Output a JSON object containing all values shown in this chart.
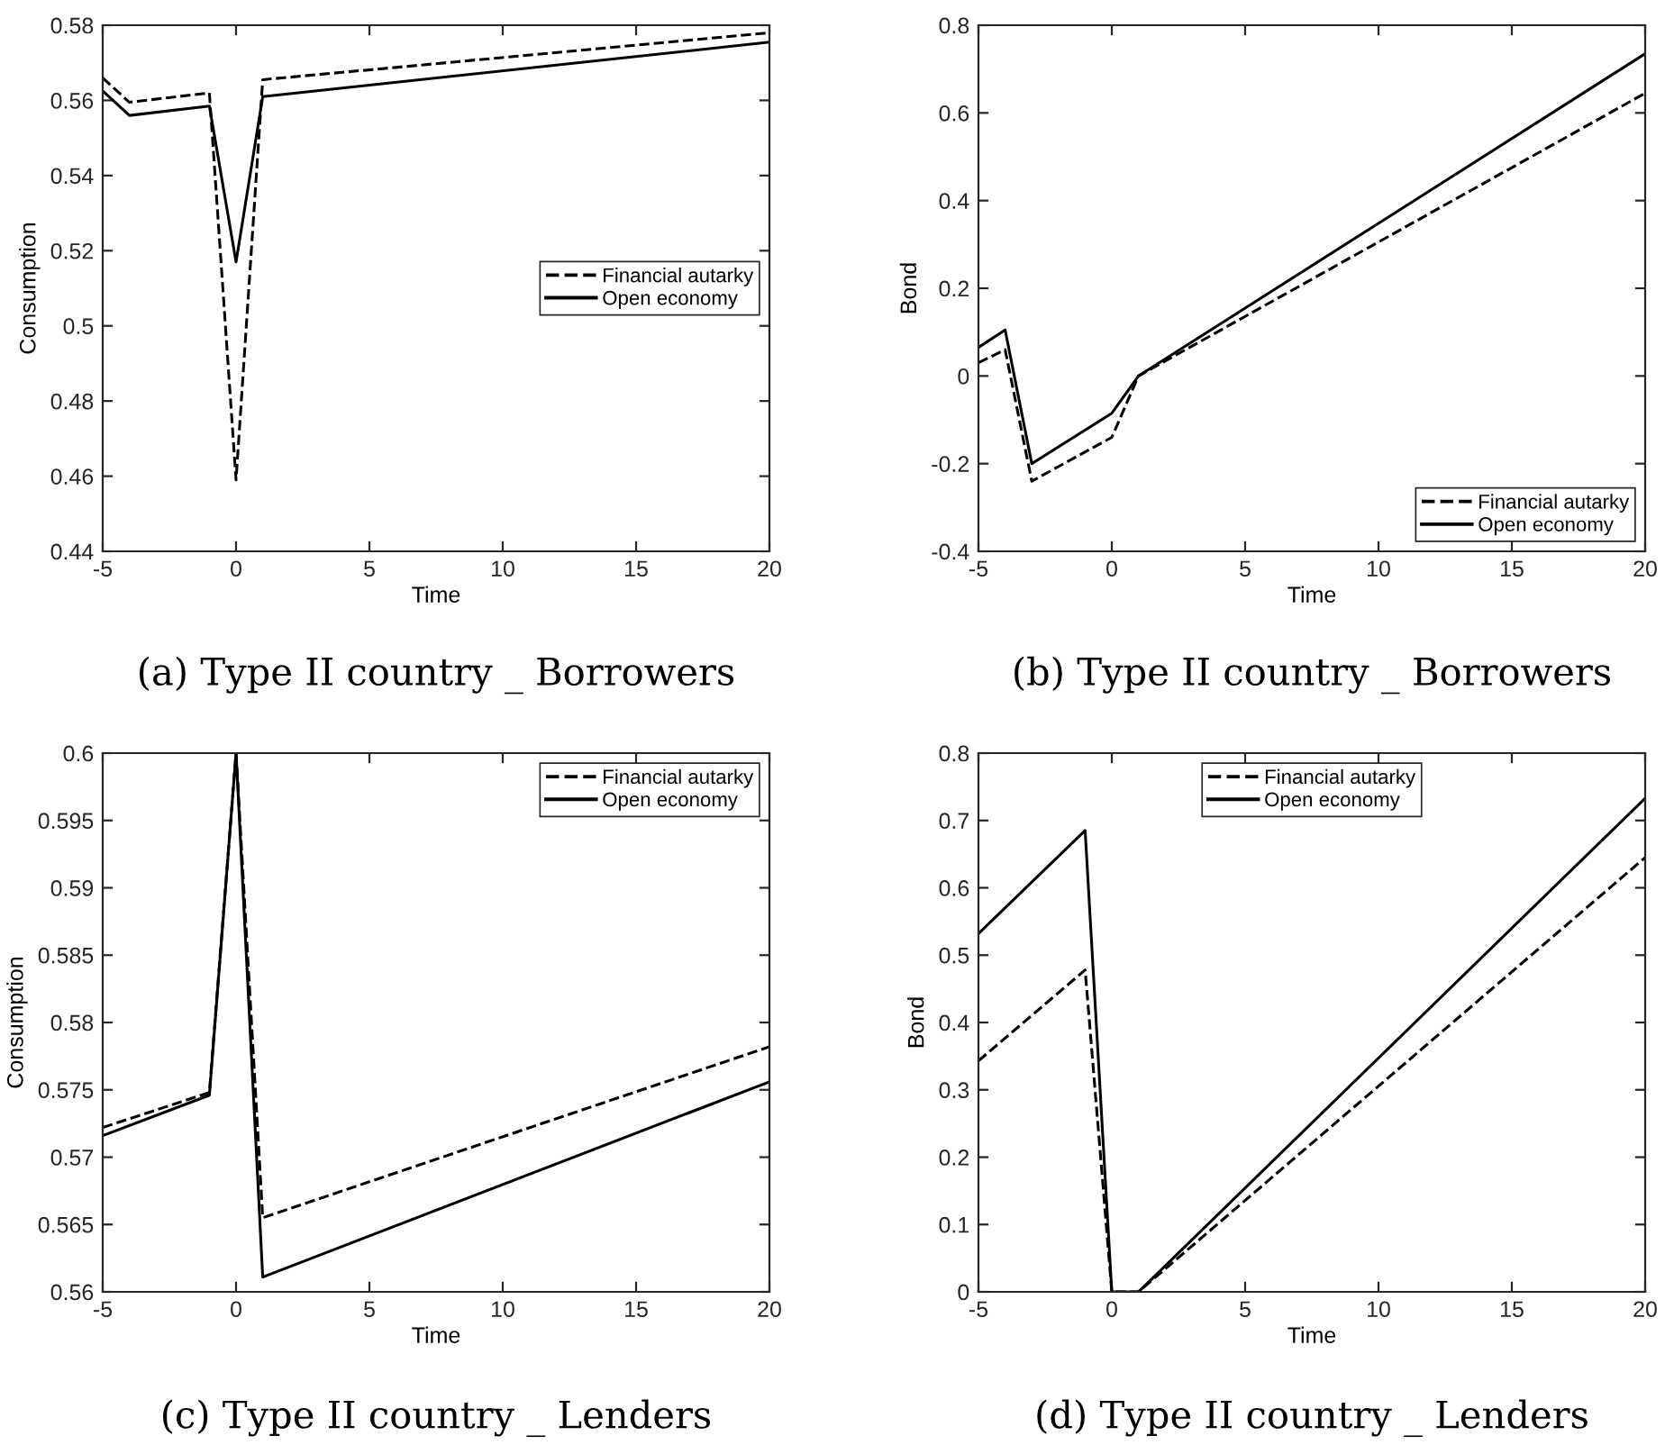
{
  "chart_data": [
    {
      "type": "line",
      "title": "(a) Type II country _ Borrowers",
      "xlabel": "Time",
      "ylabel": "Consumption",
      "xlim": [
        -5,
        20
      ],
      "xticks": [
        -5,
        0,
        5,
        10,
        15,
        20
      ],
      "ylim": [
        0.44,
        0.58
      ],
      "yticks": [
        0.44,
        0.46,
        0.48,
        0.5,
        0.52,
        0.54,
        0.56,
        0.58
      ],
      "legend": "right",
      "grid": false,
      "series": [
        {
          "name": "Financial autarky",
          "color": "#000000",
          "line_style": "dashed",
          "x": [
            -5,
            -4,
            -1,
            0,
            1,
            20
          ],
          "values": [
            0.566,
            0.5595,
            0.562,
            0.459,
            0.5655,
            0.578
          ]
        },
        {
          "name": "Open economy",
          "color": "#000000",
          "line_style": "solid",
          "x": [
            -5,
            -4,
            -1,
            0,
            1,
            20
          ],
          "values": [
            0.5625,
            0.556,
            0.5585,
            0.517,
            0.561,
            0.5755
          ]
        }
      ]
    },
    {
      "type": "line",
      "title": "(b) Type II country _ Borrowers",
      "xlabel": "Time",
      "ylabel": "Bond",
      "xlim": [
        -5,
        20
      ],
      "xticks": [
        -5,
        0,
        5,
        10,
        15,
        20
      ],
      "ylim": [
        -0.4,
        0.8
      ],
      "yticks": [
        -0.4,
        -0.2,
        0,
        0.2,
        0.4,
        0.6,
        0.8
      ],
      "legend": "bottom right",
      "grid": false,
      "series": [
        {
          "name": "Financial autarky",
          "color": "#000000",
          "line_style": "dashed",
          "x": [
            -5,
            -4,
            -3,
            0,
            1,
            20
          ],
          "values": [
            0.03,
            0.06,
            -0.24,
            -0.14,
            0,
            0.645
          ]
        },
        {
          "name": "Open economy",
          "color": "#000000",
          "line_style": "solid",
          "x": [
            -5,
            -4,
            -3,
            0,
            1,
            20
          ],
          "values": [
            0.065,
            0.105,
            -0.2,
            -0.085,
            0,
            0.735
          ]
        }
      ]
    },
    {
      "type": "line",
      "title": "(c) Type II country _ Lenders",
      "xlabel": "Time",
      "ylabel": "Consumption",
      "xlim": [
        -5,
        20
      ],
      "xticks": [
        -5,
        0,
        5,
        10,
        15,
        20
      ],
      "ylim": [
        0.56,
        0.6
      ],
      "yticks": [
        0.56,
        0.565,
        0.57,
        0.575,
        0.58,
        0.585,
        0.59,
        0.595,
        0.6
      ],
      "legend": "top right",
      "grid": false,
      "series": [
        {
          "name": "Financial autarky",
          "color": "#000000",
          "line_style": "dashed",
          "x": [
            -5,
            -1,
            0,
            1,
            20
          ],
          "values": [
            0.5722,
            0.5748,
            0.6,
            0.5655,
            0.5782
          ]
        },
        {
          "name": "Open economy",
          "color": "#000000",
          "line_style": "solid",
          "x": [
            -5,
            -1,
            0,
            1,
            20
          ],
          "values": [
            0.5716,
            0.5746,
            0.6,
            0.5611,
            0.5756
          ]
        }
      ]
    },
    {
      "type": "line",
      "title": "(d) Type II country _ Lenders",
      "xlabel": "Time",
      "ylabel": "Bond",
      "xlim": [
        -5,
        20
      ],
      "xticks": [
        -5,
        0,
        5,
        10,
        15,
        20
      ],
      "ylim": [
        0,
        0.8
      ],
      "yticks": [
        0,
        0.1,
        0.2,
        0.3,
        0.4,
        0.5,
        0.6,
        0.7,
        0.8
      ],
      "legend": "top",
      "grid": false,
      "series": [
        {
          "name": "Financial autarky",
          "color": "#000000",
          "line_style": "dashed",
          "x": [
            -5,
            -1,
            0,
            1,
            20
          ],
          "values": [
            0.343,
            0.478,
            0,
            0,
            0.645
          ]
        },
        {
          "name": "Open economy",
          "color": "#000000",
          "line_style": "solid",
          "x": [
            -5,
            -1,
            0,
            1,
            20
          ],
          "values": [
            0.532,
            0.685,
            0,
            0,
            0.733
          ]
        }
      ]
    }
  ]
}
